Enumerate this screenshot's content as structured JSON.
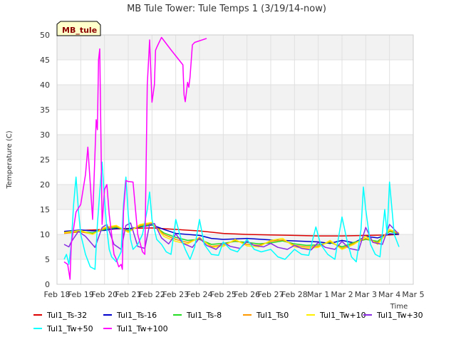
{
  "chart_data": {
    "type": "line",
    "title": "MB Tule Tower: Tule Temps 1 (3/19/14-now)",
    "badge": "MB_tule",
    "xlabel": "Time",
    "ylabel": "Temperature (C)",
    "xlim": [
      0,
      15
    ],
    "ylim": [
      0,
      50
    ],
    "x_ticks": [
      {
        "value": 0,
        "label": "Feb 18"
      },
      {
        "value": 1,
        "label": "Feb 19"
      },
      {
        "value": 2,
        "label": "Feb 20"
      },
      {
        "value": 3,
        "label": "Feb 21"
      },
      {
        "value": 4,
        "label": "Feb 22"
      },
      {
        "value": 5,
        "label": "Feb 23"
      },
      {
        "value": 6,
        "label": "Feb 24"
      },
      {
        "value": 7,
        "label": "Feb 25"
      },
      {
        "value": 8,
        "label": "Feb 26"
      },
      {
        "value": 9,
        "label": "Feb 27"
      },
      {
        "value": 10,
        "label": "Feb 28"
      },
      {
        "value": 11,
        "label": "Mar 1"
      },
      {
        "value": 12,
        "label": "Mar 2"
      },
      {
        "value": 13,
        "label": "Mar 3"
      },
      {
        "value": 14,
        "label": "Mar 4"
      },
      {
        "value": 15,
        "label": "Mar 5"
      }
    ],
    "y_ticks": [
      0,
      5,
      10,
      15,
      20,
      25,
      30,
      35,
      40,
      45,
      50
    ],
    "series": [
      {
        "name": "Tul1_Ts-32",
        "color": "#dd0000",
        "x": [
          0.3,
          1,
          2,
          3,
          4,
          5,
          6,
          7,
          8,
          9,
          10,
          11,
          12,
          13,
          14,
          14.4
        ],
        "y": [
          10.5,
          10.8,
          11.0,
          11.2,
          11.3,
          11.0,
          10.7,
          10.2,
          10.0,
          9.9,
          9.8,
          9.7,
          9.7,
          9.8,
          9.9,
          10.0
        ]
      },
      {
        "name": "Tul1_Ts-16",
        "color": "#0000cc",
        "x": [
          0.3,
          1,
          1.5,
          2,
          2.5,
          3,
          3.5,
          4,
          4.5,
          5,
          6,
          6.5,
          7,
          8,
          9,
          10,
          11,
          11.5,
          12,
          12.5,
          13,
          13.5,
          14,
          14.4
        ],
        "y": [
          10.6,
          10.9,
          10.7,
          10.8,
          11.2,
          11.1,
          11.5,
          11.9,
          11.0,
          10.2,
          9.8,
          9.2,
          9.0,
          9.2,
          8.9,
          8.7,
          8.5,
          8.2,
          8.8,
          8.3,
          9.6,
          9.3,
          10.1,
          10.0
        ]
      },
      {
        "name": "Tul1_Ts-8",
        "color": "#22dd22",
        "x": [
          0.3,
          1,
          1.5,
          2,
          2.5,
          3,
          3.5,
          4,
          4.5,
          5,
          5.5,
          6,
          6.5,
          7,
          7.5,
          8,
          8.5,
          9,
          9.5,
          10,
          10.5,
          11,
          11.5,
          12,
          12.5,
          13,
          13.5,
          14,
          14.4
        ],
        "y": [
          10.3,
          10.6,
          10.3,
          11.0,
          11.4,
          10.8,
          11.6,
          12.0,
          10.3,
          9.4,
          8.8,
          9.0,
          8.0,
          8.2,
          8.6,
          8.4,
          8.1,
          8.3,
          8.7,
          8.1,
          7.8,
          7.9,
          8.4,
          7.5,
          8.4,
          9.0,
          8.6,
          10.6,
          10.1
        ]
      },
      {
        "name": "Tul1_Ts0",
        "color": "#ff9900",
        "x": [
          0.3,
          1,
          1.5,
          2,
          2.5,
          3,
          3.5,
          4,
          4.5,
          5,
          5.5,
          6,
          6.5,
          7,
          7.5,
          8,
          8.5,
          9,
          9.5,
          10,
          10.5,
          11,
          11.5,
          12,
          12.5,
          13,
          13.5,
          14,
          14.4
        ],
        "y": [
          10.2,
          10.5,
          10.1,
          11.2,
          11.6,
          10.6,
          11.8,
          12.2,
          10.0,
          9.0,
          8.4,
          9.2,
          7.6,
          7.9,
          8.8,
          8.0,
          7.8,
          8.6,
          8.9,
          7.8,
          7.5,
          7.6,
          8.6,
          7.2,
          8.2,
          9.2,
          8.3,
          10.8,
          10.2
        ]
      },
      {
        "name": "Tul1_Tw+10",
        "color": "#ffee00",
        "x": [
          0.3,
          1,
          1.5,
          2,
          2.5,
          3,
          3.5,
          4,
          4.5,
          5,
          5.5,
          6,
          6.5,
          7,
          7.5,
          8,
          8.5,
          9,
          9.5,
          10,
          10.5,
          11,
          11.5,
          12,
          12.5,
          13,
          13.5,
          14,
          14.4
        ],
        "y": [
          10.4,
          10.8,
          10.0,
          11.4,
          11.8,
          10.4,
          12.0,
          12.4,
          9.6,
          8.6,
          8.1,
          9.4,
          7.4,
          7.6,
          9.0,
          7.7,
          7.5,
          8.8,
          9.2,
          7.5,
          7.2,
          7.4,
          8.8,
          7.0,
          8.0,
          9.6,
          8.0,
          11.0,
          10.3
        ]
      },
      {
        "name": "Tul1_Tw+30",
        "color": "#8a2be2",
        "x": [
          0.3,
          0.5,
          0.6,
          0.9,
          1.2,
          1.6,
          1.9,
          2.1,
          2.4,
          2.7,
          2.9,
          3.1,
          3.4,
          3.7,
          3.9,
          4.1,
          4.4,
          4.7,
          5.0,
          5.3,
          5.7,
          6.0,
          6.3,
          6.7,
          7.0,
          7.3,
          7.7,
          8.0,
          8.3,
          8.7,
          9.0,
          9.3,
          9.7,
          10.0,
          10.3,
          10.7,
          11.0,
          11.3,
          11.7,
          12.0,
          12.3,
          12.7,
          13.0,
          13.3,
          13.7,
          14.0,
          14.4
        ],
        "y": [
          8.0,
          7.5,
          8.5,
          10.6,
          9.6,
          7.4,
          11.4,
          12.0,
          8.0,
          7.0,
          11.8,
          12.3,
          7.6,
          7.2,
          12.0,
          12.2,
          9.3,
          8.1,
          10.1,
          8.2,
          7.4,
          9.3,
          7.8,
          7.0,
          8.4,
          7.6,
          7.2,
          8.6,
          7.8,
          7.5,
          8.2,
          7.4,
          7.0,
          7.8,
          7.2,
          6.9,
          8.4,
          7.4,
          7.0,
          8.6,
          7.2,
          6.8,
          11.4,
          8.4,
          8.0,
          12.0,
          10.0
        ]
      },
      {
        "name": "Tul1_Tw+50",
        "color": "#00ffff",
        "x": [
          0.3,
          0.4,
          0.5,
          0.6,
          0.7,
          0.8,
          0.9,
          1.0,
          1.2,
          1.4,
          1.6,
          1.7,
          1.8,
          1.9,
          2.0,
          2.1,
          2.2,
          2.3,
          2.5,
          2.7,
          2.8,
          2.9,
          3.0,
          3.1,
          3.2,
          3.4,
          3.6,
          3.8,
          3.9,
          4.0,
          4.2,
          4.4,
          4.6,
          4.8,
          5.0,
          5.2,
          5.4,
          5.6,
          5.8,
          6.0,
          6.2,
          6.5,
          6.8,
          7.0,
          7.3,
          7.6,
          8.0,
          8.3,
          8.6,
          9.0,
          9.3,
          9.6,
          10.0,
          10.3,
          10.6,
          10.9,
          11.1,
          11.4,
          11.7,
          12.0,
          12.2,
          12.4,
          12.6,
          12.8,
          12.9,
          13.0,
          13.2,
          13.4,
          13.6,
          13.8,
          13.9,
          14.0,
          14.2,
          14.4
        ],
        "y": [
          5.0,
          6.0,
          4.0,
          8.0,
          16.0,
          21.5,
          15.0,
          10.0,
          6.0,
          3.5,
          3.0,
          12.0,
          18.5,
          24.5,
          17.0,
          11.0,
          7.0,
          5.5,
          4.5,
          6.5,
          16.0,
          21.5,
          14.0,
          9.0,
          7.0,
          8.0,
          10.0,
          15.0,
          18.5,
          13.0,
          9.0,
          8.0,
          6.5,
          6.0,
          13.0,
          9.5,
          7.0,
          5.0,
          7.5,
          13.0,
          8.0,
          6.0,
          5.8,
          8.5,
          7.0,
          6.5,
          9.0,
          7.0,
          6.5,
          7.0,
          5.5,
          5.0,
          7.0,
          6.0,
          5.8,
          11.5,
          8.0,
          6.0,
          5.0,
          13.5,
          9.0,
          5.5,
          4.5,
          11.0,
          19.5,
          15.0,
          8.0,
          6.0,
          5.5,
          15.0,
          10.0,
          20.5,
          10.0,
          7.5
        ]
      },
      {
        "name": "Tul1_Tw+100",
        "color": "#ff00ff",
        "x": [
          0.3,
          0.45,
          0.55,
          0.6,
          0.8,
          1.0,
          1.2,
          1.3,
          1.5,
          1.65,
          1.7,
          1.75,
          1.8,
          1.9,
          2.0,
          2.1,
          2.2,
          2.4,
          2.5,
          2.6,
          2.7,
          2.75,
          2.8,
          2.9,
          3.0,
          3.2,
          3.4,
          3.6,
          3.7,
          3.8,
          3.9,
          4.0,
          4.1,
          4.15,
          4.2,
          4.3,
          4.4,
          4.8,
          5.3,
          5.35,
          5.4,
          5.5,
          5.55,
          5.6,
          5.7,
          5.8,
          6.3
        ],
        "y": [
          4.5,
          4.0,
          1.0,
          8.0,
          14.5,
          16.0,
          22.0,
          27.5,
          13.0,
          33.0,
          31.0,
          45.0,
          47.2,
          12.0,
          19.0,
          20.0,
          14.0,
          6.0,
          5.0,
          3.5,
          4.0,
          3.0,
          14.5,
          20.8,
          20.6,
          20.5,
          10.0,
          6.5,
          6.0,
          40.0,
          49.0,
          36.5,
          40.0,
          46.9,
          47.5,
          48.5,
          49.5,
          47.0,
          44.0,
          38.0,
          36.6,
          40.5,
          39.5,
          41.5,
          48.0,
          48.5,
          49.3
        ]
      }
    ]
  }
}
